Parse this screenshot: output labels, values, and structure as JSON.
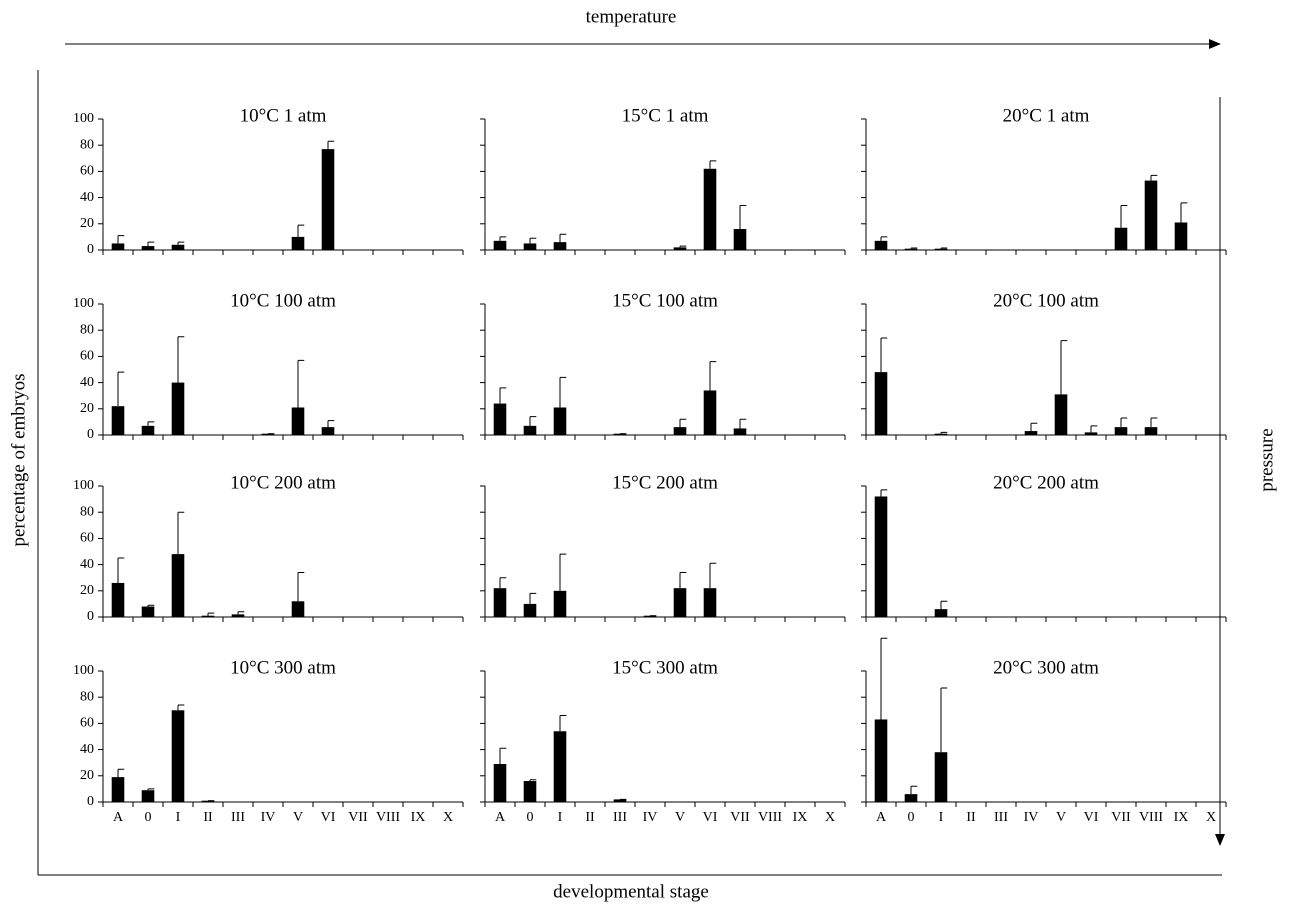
{
  "figure": {
    "x_arrow_label": "temperature",
    "y_arrow_label": "pressure",
    "ylabel": "percentage of embryos",
    "xlabel": "developmental stage"
  },
  "chart_data": [
    {
      "type": "bar",
      "title": "10°C 1 atm",
      "categories": [
        null,
        null,
        null,
        null,
        null,
        null,
        null,
        null,
        null,
        null,
        null,
        null
      ],
      "values": [
        5,
        3,
        4,
        0,
        0,
        0,
        10,
        77,
        0,
        0,
        0,
        0
      ],
      "errors": [
        6,
        3,
        2,
        0,
        0,
        0,
        9,
        6,
        0,
        0,
        0,
        0
      ],
      "color": "#000000",
      "ylim": [
        0,
        100
      ],
      "yticks": [
        0,
        20,
        40,
        60,
        80,
        100
      ],
      "ytick_labels": true
    },
    {
      "type": "bar",
      "title": "15°C 1 atm",
      "categories": [
        null,
        null,
        null,
        null,
        null,
        null,
        null,
        null,
        null,
        null,
        null,
        null
      ],
      "values": [
        7,
        5,
        6,
        0,
        0,
        0,
        2,
        62,
        16,
        0,
        0,
        0
      ],
      "errors": [
        3,
        4,
        6,
        0,
        0,
        0,
        1,
        6,
        18,
        0,
        0,
        0
      ],
      "color": "#000000",
      "ylim": [
        0,
        100
      ],
      "yticks": [
        0,
        20,
        40,
        60,
        80,
        100
      ],
      "ytick_labels": false
    },
    {
      "type": "bar",
      "title": "20°C 1 atm",
      "categories": [
        null,
        null,
        null,
        null,
        null,
        null,
        null,
        null,
        null,
        null,
        null,
        null
      ],
      "values": [
        7,
        1,
        1,
        0,
        0,
        0,
        0,
        0,
        17,
        53,
        21,
        0
      ],
      "errors": [
        3,
        0.5,
        0.5,
        0,
        0,
        0,
        0,
        0,
        17,
        4,
        15,
        0
      ],
      "color": "#000000",
      "ylim": [
        0,
        100
      ],
      "yticks": [
        0,
        20,
        40,
        60,
        80,
        100
      ],
      "ytick_labels": false
    },
    {
      "type": "bar",
      "title": "10°C 100 atm",
      "categories": [
        null,
        null,
        null,
        null,
        null,
        null,
        null,
        null,
        null,
        null,
        null,
        null
      ],
      "values": [
        22,
        7,
        40,
        0,
        0,
        1,
        21,
        6,
        0,
        0,
        0,
        0
      ],
      "errors": [
        26,
        3,
        35,
        0,
        0,
        0,
        36,
        5,
        0,
        0,
        0,
        0
      ],
      "color": "#000000",
      "ylim": [
        0,
        100
      ],
      "yticks": [
        0,
        20,
        40,
        60,
        80,
        100
      ],
      "ytick_labels": true
    },
    {
      "type": "bar",
      "title": "15°C 100 atm",
      "categories": [
        null,
        null,
        null,
        null,
        null,
        null,
        null,
        null,
        null,
        null,
        null,
        null
      ],
      "values": [
        24,
        7,
        21,
        0,
        1,
        0,
        6,
        34,
        5,
        0,
        0,
        0
      ],
      "errors": [
        12,
        7,
        23,
        0,
        0,
        0,
        6,
        22,
        7,
        0,
        0,
        0
      ],
      "color": "#000000",
      "ylim": [
        0,
        100
      ],
      "yticks": [
        0,
        20,
        40,
        60,
        80,
        100
      ],
      "ytick_labels": false
    },
    {
      "type": "bar",
      "title": "20°C 100 atm",
      "categories": [
        null,
        null,
        null,
        null,
        null,
        null,
        null,
        null,
        null,
        null,
        null,
        null
      ],
      "values": [
        48,
        0,
        1,
        0,
        0,
        3,
        31,
        2,
        6,
        6,
        0,
        0
      ],
      "errors": [
        26,
        0,
        1,
        0,
        0,
        6,
        41,
        5,
        7,
        7,
        0,
        0
      ],
      "color": "#000000",
      "ylim": [
        0,
        100
      ],
      "yticks": [
        0,
        20,
        40,
        60,
        80,
        100
      ],
      "ytick_labels": false
    },
    {
      "type": "bar",
      "title": "10°C 200 atm",
      "categories": [
        null,
        null,
        null,
        null,
        null,
        null,
        null,
        null,
        null,
        null,
        null,
        null
      ],
      "values": [
        26,
        8,
        48,
        1,
        2,
        0,
        12,
        0,
        0,
        0,
        0,
        0
      ],
      "errors": [
        19,
        1,
        32,
        2,
        2,
        0,
        22,
        0,
        0,
        0,
        0,
        0
      ],
      "color": "#000000",
      "ylim": [
        0,
        100
      ],
      "yticks": [
        0,
        20,
        40,
        60,
        80,
        100
      ],
      "ytick_labels": true
    },
    {
      "type": "bar",
      "title": "15°C 200 atm",
      "categories": [
        null,
        null,
        null,
        null,
        null,
        null,
        null,
        null,
        null,
        null,
        null,
        null
      ],
      "values": [
        22,
        10,
        20,
        0,
        0,
        1,
        22,
        22,
        0,
        0,
        0,
        0
      ],
      "errors": [
        8,
        8,
        28,
        0,
        0,
        0,
        12,
        19,
        0,
        0,
        0,
        0
      ],
      "color": "#000000",
      "ylim": [
        0,
        100
      ],
      "yticks": [
        0,
        20,
        40,
        60,
        80,
        100
      ],
      "ytick_labels": false
    },
    {
      "type": "bar",
      "title": "20°C 200 atm",
      "categories": [
        null,
        null,
        null,
        null,
        null,
        null,
        null,
        null,
        null,
        null,
        null,
        null
      ],
      "values": [
        92,
        0,
        6,
        0,
        0,
        0,
        0,
        0,
        0,
        0,
        0,
        0
      ],
      "errors": [
        5,
        0,
        6,
        0,
        0,
        0,
        0,
        0,
        0,
        0,
        0,
        0
      ],
      "color": "#000000",
      "ylim": [
        0,
        100
      ],
      "yticks": [
        0,
        20,
        40,
        60,
        80,
        100
      ],
      "ytick_labels": false
    },
    {
      "type": "bar",
      "title": "10°C 300 atm",
      "categories": [
        "A",
        "0",
        "I",
        "II",
        "III",
        "IV",
        "V",
        "VI",
        "VII",
        "VIII",
        "IX",
        "X"
      ],
      "values": [
        19,
        9,
        70,
        1,
        0,
        0,
        0,
        0,
        0,
        0,
        0,
        0
      ],
      "errors": [
        6,
        1,
        4,
        0,
        0,
        0,
        0,
        0,
        0,
        0,
        0,
        0
      ],
      "color": "#000000",
      "ylim": [
        0,
        100
      ],
      "yticks": [
        0,
        20,
        40,
        60,
        80,
        100
      ],
      "ytick_labels": true
    },
    {
      "type": "bar",
      "title": "15°C 300 atm",
      "categories": [
        "A",
        "0",
        "I",
        "II",
        "III",
        "IV",
        "V",
        "VI",
        "VII",
        "VIII",
        "IX",
        "X"
      ],
      "values": [
        29,
        16,
        54,
        0,
        2,
        0,
        0,
        0,
        0,
        0,
        0,
        0
      ],
      "errors": [
        12,
        1,
        12,
        0,
        0,
        0,
        0,
        0,
        0,
        0,
        0,
        0
      ],
      "color": "#000000",
      "ylim": [
        0,
        100
      ],
      "yticks": [
        0,
        20,
        40,
        60,
        80,
        100
      ],
      "ytick_labels": false
    },
    {
      "type": "bar",
      "title": "20°C 300 atm",
      "categories": [
        "A",
        "0",
        "I",
        "II",
        "III",
        "IV",
        "V",
        "VI",
        "VII",
        "VIII",
        "IX",
        "X"
      ],
      "values": [
        63,
        6,
        38,
        0,
        0,
        0,
        0,
        0,
        0,
        0,
        0,
        0
      ],
      "errors": [
        62,
        6,
        49,
        0,
        0,
        0,
        0,
        0,
        0,
        0,
        0,
        0
      ],
      "color": "#000000",
      "ylim": [
        0,
        100
      ],
      "yticks": [
        0,
        20,
        40,
        60,
        80,
        100
      ],
      "ytick_labels": false
    }
  ]
}
